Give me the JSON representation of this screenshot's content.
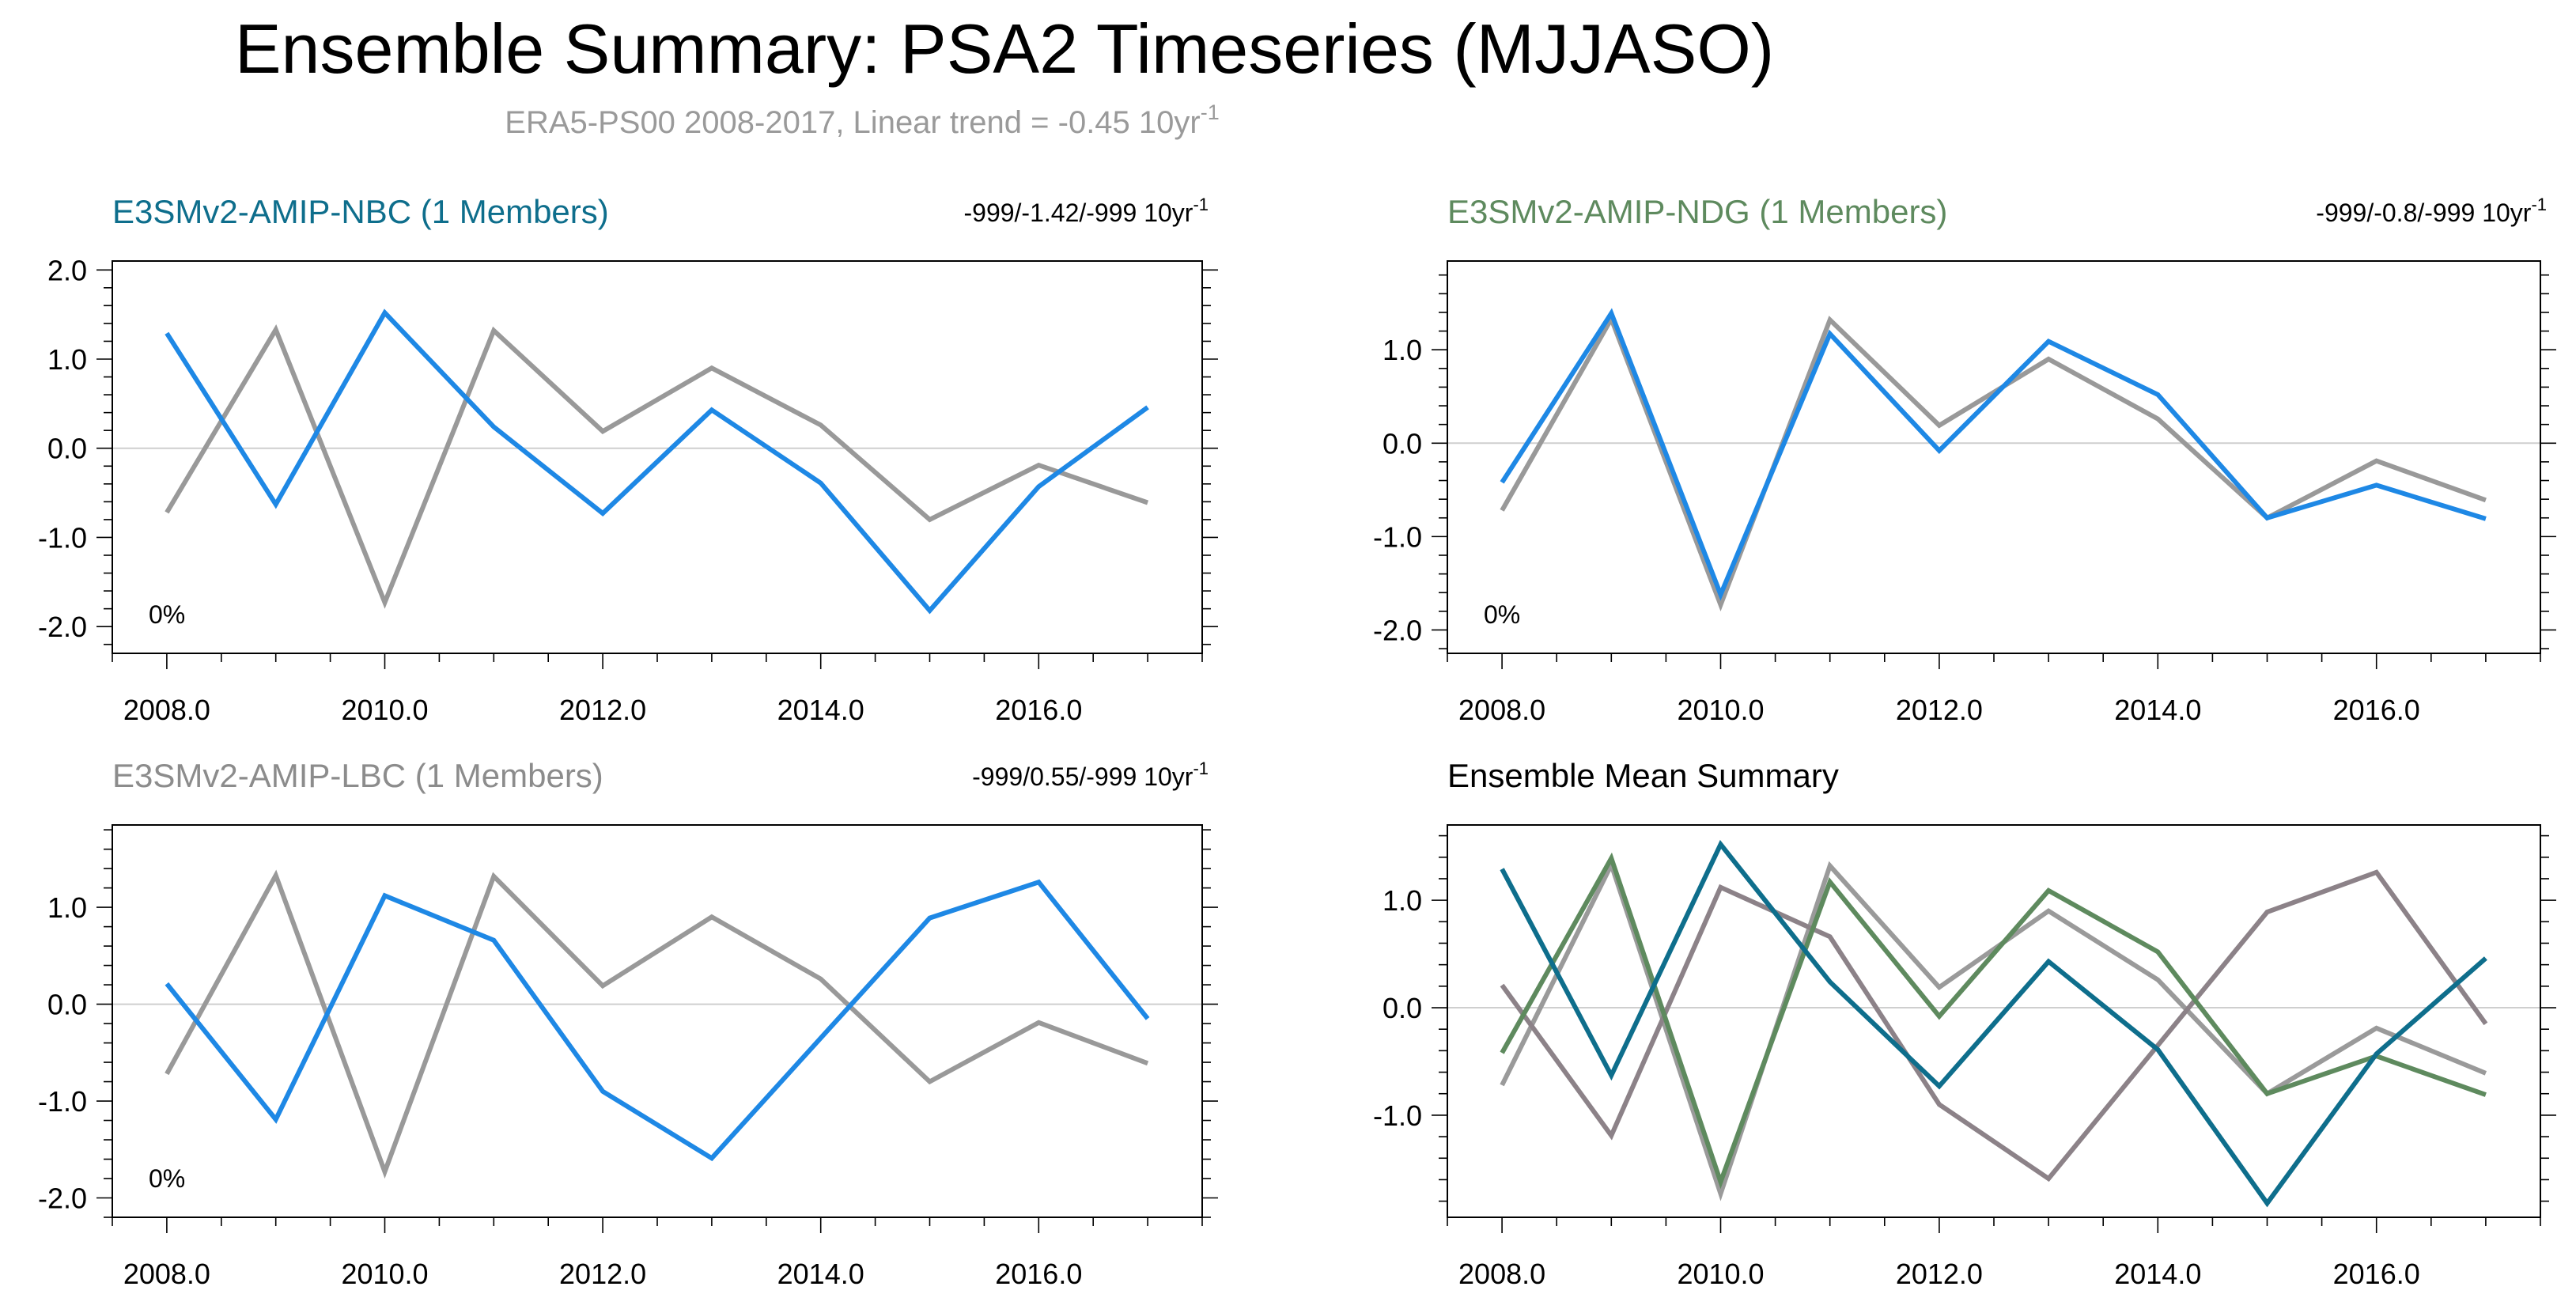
{
  "page": {
    "title": "Ensemble Summary: PSA2 Timeseries (MJJASO)",
    "subtitle_main": "ERA5-PS00 2008-2017, Linear trend = -0.45 10yr",
    "subtitle_sup": "-1",
    "colors": {
      "title": "#000000",
      "subtitle": "#9a9a9a",
      "axis": "#000000",
      "zero_line": "#c8c8c8"
    }
  },
  "chart_data": [
    {
      "type": "line",
      "id": "nbc",
      "title": "E3SMv2-AMIP-NBC (1 Members)",
      "title_color": "#0e6e8c",
      "trend_label": "-999/-1.42/-999 10yr",
      "trend_sup": "-1",
      "percent_label": "0%",
      "x": [
        2008,
        2009,
        2010,
        2011,
        2012,
        2013,
        2014,
        2015,
        2016,
        2017
      ],
      "xlim": [
        2007.5,
        2017.5
      ],
      "ylim": [
        -2.3,
        2.1
      ],
      "yticks": [
        -2.0,
        -1.0,
        0.0,
        1.0,
        2.0
      ],
      "ytick_labels": [
        "-2.0",
        "-1.0",
        "0.0",
        "1.0",
        "2.0"
      ],
      "xticks": [
        2008,
        2010,
        2012,
        2014,
        2016
      ],
      "xtick_labels": [
        "2008.0",
        "2010.0",
        "2012.0",
        "2014.0",
        "2016.0"
      ],
      "series": [
        {
          "name": "ERA5-PS00",
          "color": "#999999",
          "values": [
            -0.72,
            1.33,
            -1.73,
            1.32,
            0.19,
            0.9,
            0.26,
            -0.8,
            -0.19,
            -0.61
          ]
        },
        {
          "name": "E3SMv2-AMIP-NBC",
          "color": "#1e88e5",
          "values": [
            1.29,
            -0.63,
            1.52,
            0.24,
            -0.73,
            0.43,
            -0.39,
            -1.82,
            -0.43,
            0.46
          ]
        }
      ]
    },
    {
      "type": "line",
      "id": "ndg",
      "title": "E3SMv2-AMIP-NDG (1 Members)",
      "title_color": "#5e8a5e",
      "trend_label": "-999/-0.8/-999 10yr",
      "trend_sup": "-1",
      "percent_label": "0%",
      "x": [
        2008,
        2009,
        2010,
        2011,
        2012,
        2013,
        2014,
        2015,
        2016,
        2017
      ],
      "xlim": [
        2007.5,
        2017.5
      ],
      "ylim": [
        -2.25,
        1.95
      ],
      "yticks": [
        -2.0,
        -1.0,
        0.0,
        1.0
      ],
      "ytick_labels": [
        "-2.0",
        "-1.0",
        "0.0",
        "1.0"
      ],
      "xticks": [
        2008,
        2010,
        2012,
        2014,
        2016
      ],
      "xtick_labels": [
        "2008.0",
        "2010.0",
        "2012.0",
        "2014.0",
        "2016.0"
      ],
      "series": [
        {
          "name": "ERA5-PS00",
          "color": "#999999",
          "values": [
            -0.72,
            1.33,
            -1.73,
            1.32,
            0.19,
            0.9,
            0.26,
            -0.8,
            -0.19,
            -0.61
          ]
        },
        {
          "name": "E3SMv2-AMIP-NDG",
          "color": "#1e88e5",
          "values": [
            -0.42,
            1.39,
            -1.62,
            1.17,
            -0.08,
            1.09,
            0.52,
            -0.8,
            -0.45,
            -0.81
          ]
        }
      ]
    },
    {
      "type": "line",
      "id": "lbc",
      "title": "E3SMv2-AMIP-LBC (1 Members)",
      "title_color": "#8c8c8c",
      "trend_label": "-999/0.55/-999 10yr",
      "trend_sup": "-1",
      "percent_label": "0%",
      "x": [
        2008,
        2009,
        2010,
        2011,
        2012,
        2013,
        2014,
        2015,
        2016,
        2017
      ],
      "xlim": [
        2007.5,
        2017.5
      ],
      "ylim": [
        -2.2,
        1.85
      ],
      "yticks": [
        -2.0,
        -1.0,
        0.0,
        1.0
      ],
      "ytick_labels": [
        "-2.0",
        "-1.0",
        "0.0",
        "1.0"
      ],
      "xticks": [
        2008,
        2010,
        2012,
        2014,
        2016
      ],
      "xtick_labels": [
        "2008.0",
        "2010.0",
        "2012.0",
        "2014.0",
        "2016.0"
      ],
      "series": [
        {
          "name": "ERA5-PS00",
          "color": "#999999",
          "values": [
            -0.72,
            1.33,
            -1.73,
            1.32,
            0.19,
            0.9,
            0.26,
            -0.8,
            -0.19,
            -0.61
          ]
        },
        {
          "name": "E3SMv2-AMIP-LBC",
          "color": "#1e88e5",
          "values": [
            0.21,
            -1.19,
            1.12,
            0.66,
            -0.9,
            -1.59,
            -0.35,
            0.89,
            1.26,
            -0.15
          ]
        }
      ]
    },
    {
      "type": "line",
      "id": "mean",
      "title": "Ensemble Mean Summary",
      "title_color": "#000000",
      "trend_label": "",
      "trend_sup": "",
      "percent_label": "",
      "x": [
        2008,
        2009,
        2010,
        2011,
        2012,
        2013,
        2014,
        2015,
        2016,
        2017
      ],
      "xlim": [
        2007.5,
        2017.5
      ],
      "ylim": [
        -1.95,
        1.7
      ],
      "yticks": [
        -1.0,
        0.0,
        1.0
      ],
      "ytick_labels": [
        "-1.0",
        "0.0",
        "1.0"
      ],
      "xticks": [
        2008,
        2010,
        2012,
        2014,
        2016
      ],
      "xtick_labels": [
        "2008.0",
        "2010.0",
        "2012.0",
        "2014.0",
        "2016.0"
      ],
      "series": [
        {
          "name": "ERA5-PS00",
          "color": "#9a9a9a",
          "values": [
            -0.72,
            1.33,
            -1.73,
            1.32,
            0.19,
            0.9,
            0.26,
            -0.8,
            -0.19,
            -0.61
          ]
        },
        {
          "name": "E3SMv2-AMIP-LBC",
          "color": "#8c8288",
          "values": [
            0.21,
            -1.19,
            1.12,
            0.66,
            -0.9,
            -1.59,
            -0.35,
            0.89,
            1.26,
            -0.15
          ]
        },
        {
          "name": "E3SMv2-AMIP-NDG",
          "color": "#5e8a5e",
          "values": [
            -0.42,
            1.39,
            -1.62,
            1.17,
            -0.08,
            1.09,
            0.52,
            -0.8,
            -0.45,
            -0.81
          ]
        },
        {
          "name": "E3SMv2-AMIP-NBC",
          "color": "#0e6e8c",
          "values": [
            1.29,
            -0.63,
            1.52,
            0.24,
            -0.73,
            0.43,
            -0.39,
            -1.82,
            -0.43,
            0.46
          ]
        }
      ]
    }
  ]
}
